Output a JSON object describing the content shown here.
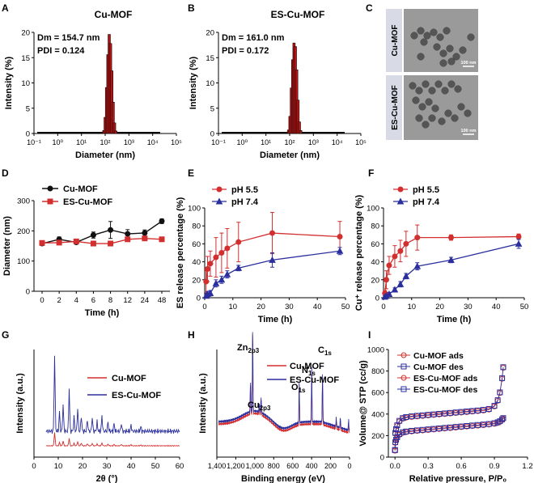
{
  "colors": {
    "red": "#d32f2f",
    "blue": "#2b2f9e",
    "black": "#111111",
    "histfill": "#b01515",
    "tem_bg": "#9a9a9a",
    "tem_label_bg": "#d8dbe6"
  },
  "panel_letters": [
    "A",
    "B",
    "C",
    "D",
    "E",
    "F",
    "G",
    "H",
    "I"
  ],
  "chart_data": [
    {
      "id": "A",
      "type": "bar",
      "title": "Cu-MOF",
      "xlabel": "Diameter (nm)",
      "ylabel": "Intensity (%)",
      "xscale": "log",
      "xlim": [
        0.1,
        100000
      ],
      "ylim": [
        0,
        20
      ],
      "xticks": [
        {
          "v": 0.1,
          "l": "10⁻¹"
        },
        {
          "v": 1,
          "l": "10⁰"
        },
        {
          "v": 10,
          "l": "10¹"
        },
        {
          "v": 100,
          "l": "10²"
        },
        {
          "v": 1000,
          "l": "10³"
        },
        {
          "v": 10000,
          "l": "10⁴"
        },
        {
          "v": 100000,
          "l": "10⁵"
        }
      ],
      "yticks": [
        0,
        5,
        10,
        15,
        20
      ],
      "annotation": [
        "Dm = 154.7 nm",
        "PDI = 0.124"
      ],
      "bars": [
        [
          88,
          0.6
        ],
        [
          100,
          3.2
        ],
        [
          114,
          9.1
        ],
        [
          130,
          15.6
        ],
        [
          148,
          19.6
        ],
        [
          168,
          17.8
        ],
        [
          191,
          12.4
        ],
        [
          218,
          6.2
        ],
        [
          248,
          2.1
        ],
        [
          282,
          0.5
        ]
      ]
    },
    {
      "id": "B",
      "type": "bar",
      "title": "ES-Cu-MOF",
      "xlabel": "Diameter (nm)",
      "ylabel": "Intensity (%)",
      "xscale": "log",
      "xlim": [
        0.1,
        100000
      ],
      "ylim": [
        0,
        20
      ],
      "xticks": [
        {
          "v": 0.1,
          "l": "10⁻¹"
        },
        {
          "v": 1,
          "l": "10⁰"
        },
        {
          "v": 10,
          "l": "10¹"
        },
        {
          "v": 100,
          "l": "10²"
        },
        {
          "v": 1000,
          "l": "10³"
        },
        {
          "v": 10000,
          "l": "10⁴"
        },
        {
          "v": 100000,
          "l": "10⁵"
        }
      ],
      "yticks": [
        0,
        5,
        10,
        15,
        20
      ],
      "annotation": [
        "Dm = 161.0 nm",
        "PDI = 0.172"
      ],
      "bars": [
        [
          90,
          0.7
        ],
        [
          103,
          3.4
        ],
        [
          118,
          9.0
        ],
        [
          134,
          14.6
        ],
        [
          153,
          17.9
        ],
        [
          174,
          17.2
        ],
        [
          198,
          12.6
        ],
        [
          226,
          6.6
        ],
        [
          257,
          2.3
        ],
        [
          293,
          0.6
        ]
      ]
    },
    {
      "id": "D",
      "type": "line",
      "xlabel": "Time (h)",
      "ylabel": "Diameter (nm)",
      "categories": [
        "0",
        "2",
        "4",
        "6",
        "8",
        "12",
        "24",
        "48"
      ],
      "ylim": [
        0,
        300
      ],
      "yticks": [
        0,
        100,
        200,
        300
      ],
      "series": [
        {
          "name": "Cu-MOF",
          "color": "black",
          "marker": "circle",
          "values": [
            158,
            172,
            162,
            186,
            203,
            190,
            193,
            232
          ],
          "errors": [
            6,
            8,
            6,
            10,
            28,
            14,
            10,
            8
          ]
        },
        {
          "name": "ES-Cu-MOF",
          "color": "red",
          "marker": "square",
          "values": [
            160,
            161,
            165,
            158,
            158,
            172,
            175,
            172
          ],
          "errors": [
            5,
            5,
            5,
            5,
            5,
            5,
            5,
            5
          ]
        }
      ]
    },
    {
      "id": "E",
      "type": "line",
      "xlabel": "Time (h)",
      "ylabel": "ES release percentage (%)",
      "xlim": [
        0,
        50
      ],
      "xticks": [
        0,
        10,
        20,
        30,
        40,
        50
      ],
      "ylim": [
        0,
        100
      ],
      "yticks": [
        0,
        20,
        40,
        60,
        80,
        100
      ],
      "series": [
        {
          "name": "pH 5.5",
          "color": "red",
          "marker": "circle",
          "x": [
            0.5,
            1,
            2,
            4,
            6,
            8,
            12,
            24,
            48
          ],
          "values": [
            18,
            32,
            38,
            45,
            50,
            55,
            62,
            72,
            68
          ],
          "errors": [
            12,
            14,
            14,
            22,
            22,
            22,
            22,
            23,
            17
          ]
        },
        {
          "name": "pH 7.4",
          "color": "blue",
          "marker": "triangle",
          "x": [
            0.5,
            1,
            2,
            4,
            6,
            8,
            12,
            24,
            48
          ],
          "values": [
            2,
            4,
            5,
            16,
            20,
            26,
            33,
            42,
            52
          ],
          "errors": [
            3,
            3,
            3,
            4,
            4,
            4,
            3,
            8,
            4
          ]
        }
      ]
    },
    {
      "id": "F",
      "type": "line",
      "xlabel": "Time (h)",
      "ylabel": "Cu⁺ release percentage (%)",
      "xlim": [
        0,
        50
      ],
      "xticks": [
        0,
        10,
        20,
        30,
        40,
        50
      ],
      "ylim": [
        0,
        100
      ],
      "yticks": [
        0,
        20,
        40,
        60,
        80,
        100
      ],
      "series": [
        {
          "name": "pH 5.5",
          "color": "red",
          "marker": "circle",
          "x": [
            0.5,
            1,
            2,
            4,
            6,
            8,
            12,
            24,
            48
          ],
          "values": [
            5,
            20,
            36,
            46,
            52,
            60,
            67,
            67,
            68
          ],
          "errors": [
            3,
            10,
            10,
            12,
            12,
            14,
            14,
            3,
            3
          ]
        },
        {
          "name": "pH 7.4",
          "color": "blue",
          "marker": "triangle",
          "x": [
            0.5,
            1,
            2,
            4,
            6,
            8,
            12,
            24,
            48
          ],
          "values": [
            1,
            2,
            4,
            9,
            15,
            24,
            35,
            42,
            60
          ],
          "errors": [
            1,
            1,
            2,
            2,
            3,
            3,
            4,
            3,
            5
          ]
        }
      ]
    },
    {
      "id": "G",
      "type": "line",
      "xlabel": "2θ (°)",
      "ylabel": "Intensity (a.u.)",
      "xlim": [
        0,
        60
      ],
      "xticks": [
        0,
        10,
        20,
        30,
        40,
        50,
        60
      ],
      "series": [
        {
          "name": "Cu-MOF",
          "color": "red"
        },
        {
          "name": "ES-Cu-MOF",
          "color": "blue"
        }
      ]
    },
    {
      "id": "H",
      "type": "line",
      "xlabel": "Binding energy (eV)",
      "ylabel": "Intensity (a.u.)",
      "xlim": [
        1400,
        0
      ],
      "xticks": [
        {
          "v": 1400,
          "l": "1,400"
        },
        {
          "v": 1200,
          "l": "1,200"
        },
        {
          "v": 1000,
          "l": "1,000"
        },
        {
          "v": 800,
          "l": "800"
        },
        {
          "v": 600,
          "l": "600"
        },
        {
          "v": 400,
          "l": "400"
        },
        {
          "v": 200,
          "l": "200"
        },
        {
          "v": 0,
          "l": "0"
        }
      ],
      "peaks": [
        {
          "label": "Zn",
          "sub": "2p3",
          "x": 1022
        },
        {
          "label": "Cu",
          "sub": "2p3",
          "x": 933
        },
        {
          "label": "O",
          "sub": "1s",
          "x": 531
        },
        {
          "label": "N",
          "sub": "1s",
          "x": 399
        },
        {
          "label": "C",
          "sub": "1s",
          "x": 285
        }
      ],
      "series": [
        {
          "name": "Cu-MOF",
          "color": "red"
        },
        {
          "name": "ES-Cu-MOF",
          "color": "blue"
        }
      ]
    },
    {
      "id": "I",
      "type": "line",
      "xlabel": "Relative pressure, P/P₀",
      "ylabel": "Volume@ STP (cc/g)",
      "xlim": [
        -0.06,
        1.2
      ],
      "xticks": [
        {
          "v": 0,
          "l": "0.0"
        },
        {
          "v": 0.3,
          "l": "0.3"
        },
        {
          "v": 0.6,
          "l": "0.6"
        },
        {
          "v": 0.9,
          "l": "0.9"
        },
        {
          "v": 1.2,
          "l": "1.2"
        }
      ],
      "ylim": [
        0,
        1000
      ],
      "yticks": [
        0,
        200,
        400,
        600,
        800,
        1000
      ],
      "series": [
        {
          "name": "Cu-MOF ads",
          "color": "red",
          "marker": "circle",
          "upper": true
        },
        {
          "name": "Cu-MOF des",
          "color": "blue",
          "marker": "square",
          "upper": true
        },
        {
          "name": "ES-Cu-MOF ads",
          "color": "red",
          "marker": "circle",
          "upper": false
        },
        {
          "name": "ES-Cu-MOF des",
          "color": "blue",
          "marker": "square",
          "upper": false
        }
      ]
    }
  ],
  "tem": {
    "panels": [
      {
        "label": "Cu-MOF",
        "scale": "100 nm"
      },
      {
        "label": "ES-Cu-MOF",
        "scale": "100 nm"
      }
    ]
  }
}
